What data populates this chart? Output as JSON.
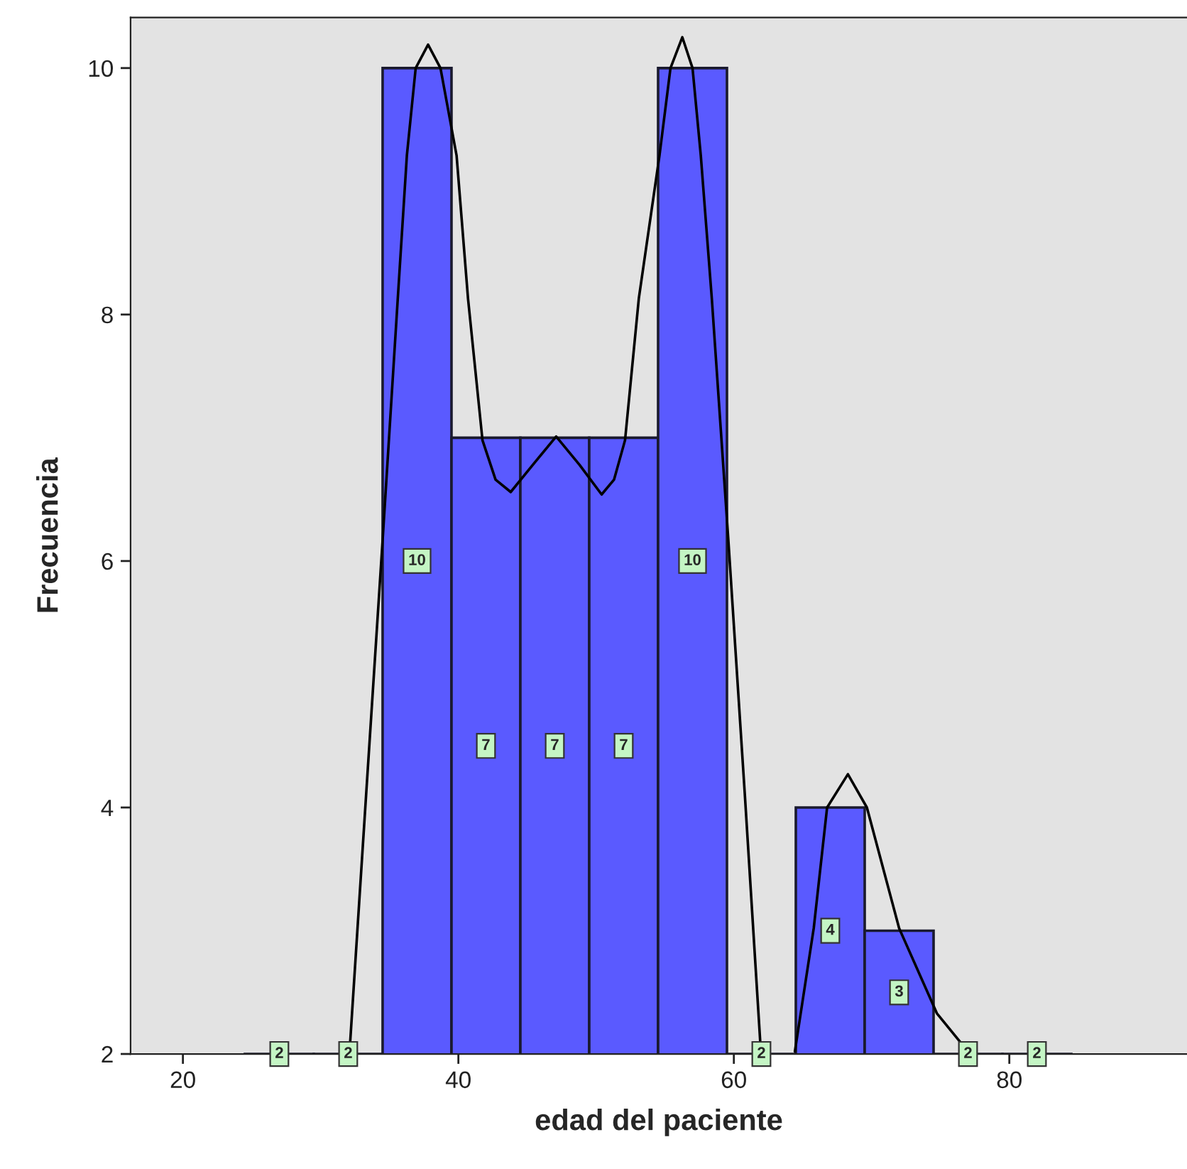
{
  "chart_data": {
    "type": "histogram",
    "xlabel": "edad del paciente",
    "ylabel": "Frecuencia",
    "bins": [
      24.5,
      29.5,
      34.5,
      39.5,
      44.5,
      49.5,
      54.5,
      59.5,
      64.5,
      69.5,
      74.5,
      79.5,
      84.5
    ],
    "values": [
      2,
      2,
      10,
      7,
      7,
      7,
      10,
      2,
      4,
      3,
      2,
      2
    ],
    "color": "#5a5aff",
    "value_labels": [
      "2",
      "2",
      "10",
      "7",
      "7",
      "7",
      "10",
      "2",
      "4",
      "3",
      "2",
      "2"
    ],
    "series": [
      {
        "type": "line",
        "color": "#000000",
        "x": [
          32.1,
          33.3,
          34.5,
          35.6,
          36.26,
          36.9,
          37.8,
          38.7,
          39.87,
          40.7,
          41.75,
          42.7,
          43.8,
          45.4,
          47.1,
          48.8,
          50.4,
          51.3,
          52.1,
          53.1,
          54.6,
          55.4,
          56.26,
          57.0,
          57.6,
          58.4,
          59.6,
          60.8,
          61.96
        ],
        "values": [
          2.02,
          4.1,
          6.17,
          8.13,
          9.29,
          10.0,
          10.19,
          10.0,
          9.29,
          8.13,
          6.98,
          6.66,
          6.56,
          6.78,
          7.01,
          6.78,
          6.54,
          6.66,
          6.98,
          8.13,
          9.29,
          10.0,
          10.25,
          10.0,
          9.29,
          8.13,
          6.17,
          4.1,
          2.02
        ]
      },
      {
        "type": "line",
        "color": "#000000",
        "x": [
          64.43,
          65.8,
          66.77,
          68.28,
          69.66,
          72.0,
          74.74,
          77.0
        ],
        "values": [
          2.02,
          3.02,
          4.0,
          4.27,
          4.0,
          3.02,
          2.33,
          2.02
        ]
      }
    ],
    "xlim": [
      16.2,
      92.9
    ],
    "xticks": [
      20,
      40,
      60,
      80
    ],
    "ylim": [
      2,
      10.41
    ],
    "yticks": [
      2,
      4,
      6,
      8,
      10
    ],
    "grid": false
  }
}
